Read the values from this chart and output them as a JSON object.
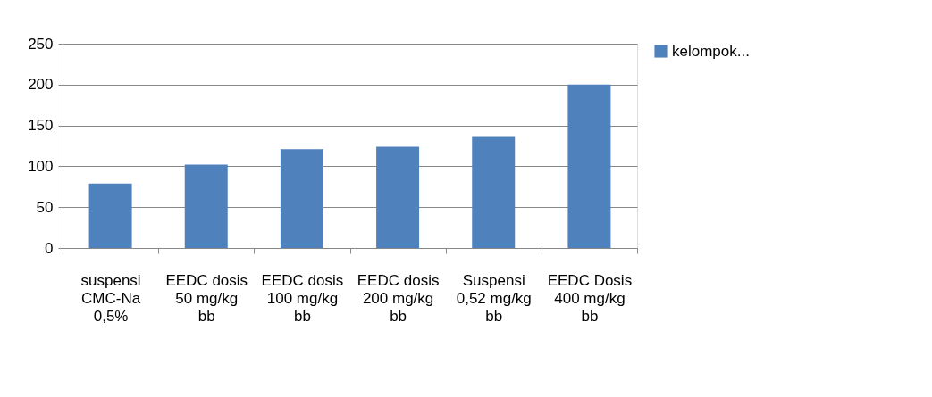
{
  "chart_data": {
    "type": "bar",
    "categories": [
      "suspensi CMC-Na 0,5%",
      "EEDC dosis 50 mg/kg bb",
      "EEDC dosis 100 mg/kg bb",
      "EEDC dosis 200 mg/kg bb",
      "Suspensi 0,52 mg/kg bb",
      "EEDC Dosis 400 mg/kg bb"
    ],
    "series": [
      {
        "name": "kelompok...",
        "color": "#4f81bd",
        "values": [
          79,
          102,
          121,
          124,
          136,
          200
        ]
      }
    ],
    "ylim": [
      0,
      250
    ],
    "yticks": [
      0,
      50,
      100,
      150,
      200,
      250
    ],
    "grid": "y",
    "legend": "right"
  }
}
